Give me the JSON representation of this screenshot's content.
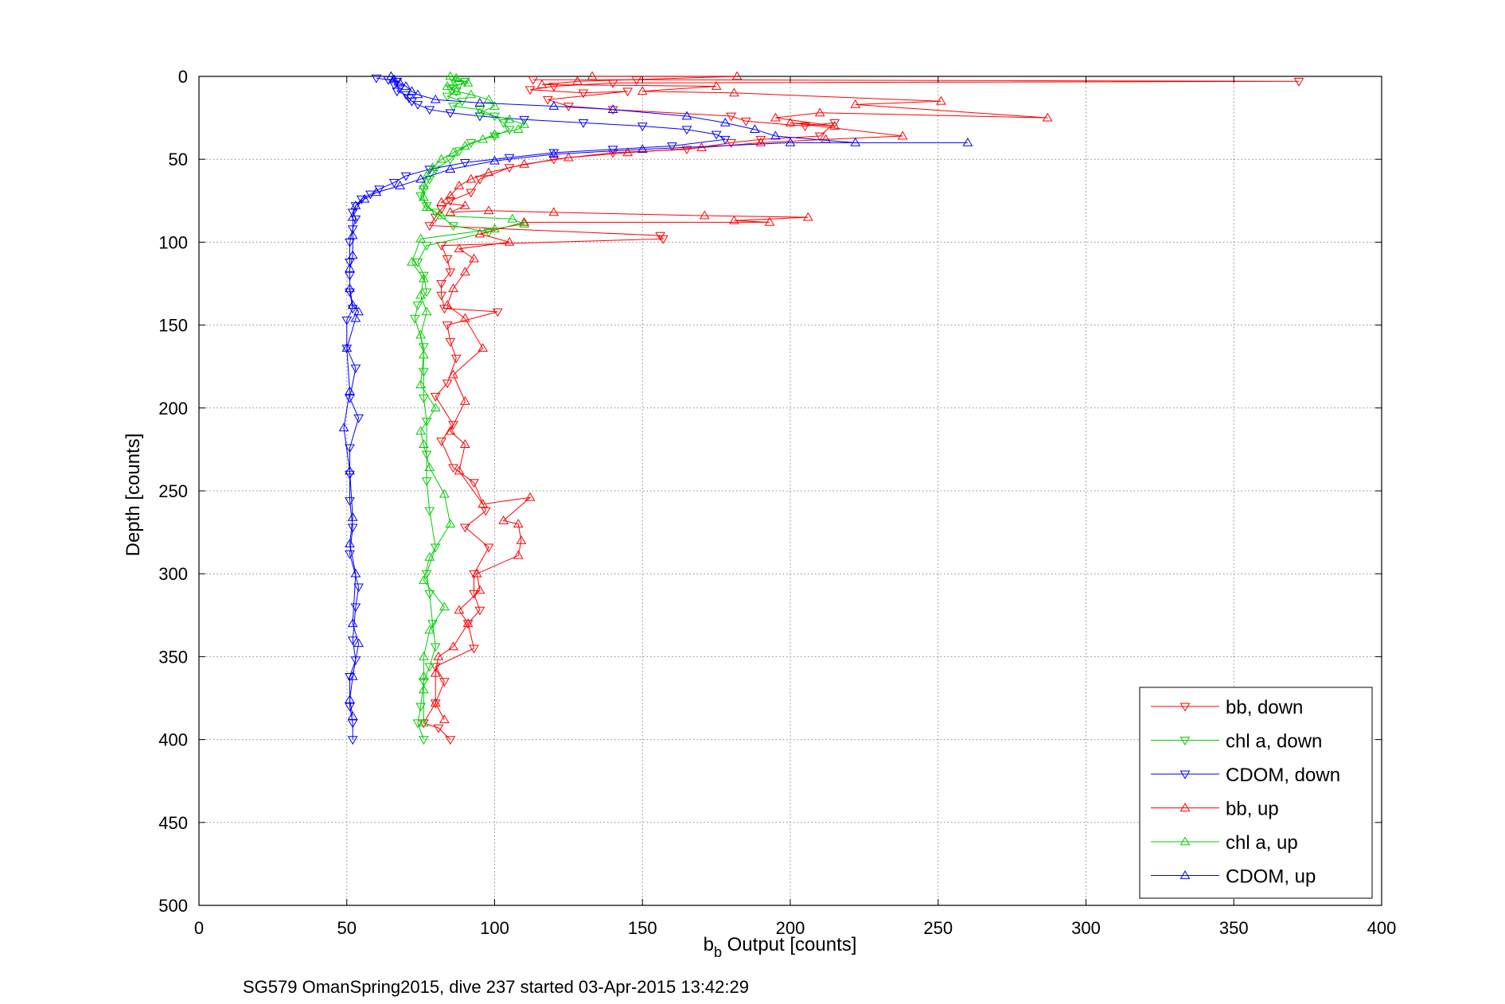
{
  "chart_data": {
    "type": "scatter",
    "xlabel_main": "b",
    "xlabel_sub": "b",
    "xlabel_rest": " Output [counts]",
    "ylabel": "Depth [counts]",
    "caption": "SG579 OmanSpring2015, dive 237 started 03-Apr-2015 13:42:29",
    "xlim": [
      0,
      400
    ],
    "ylim": [
      0,
      500
    ],
    "y_reversed": true,
    "grid": true,
    "xticks": [
      "0",
      "50",
      "100",
      "150",
      "200",
      "250",
      "300",
      "350",
      "400"
    ],
    "yticks": [
      "0",
      "50",
      "100",
      "150",
      "200",
      "250",
      "300",
      "350",
      "400",
      "450",
      "500"
    ],
    "legend_position": "bottom-right",
    "colors": {
      "red": "#ff0000",
      "green": "#00cc00",
      "blue": "#0000ff"
    },
    "series": [
      {
        "name": "bb, down",
        "color": "#ff0000",
        "marker": "triangle-down",
        "points": [
          [
            113,
            2
          ],
          [
            148,
            2
          ],
          [
            372,
            3
          ],
          [
            140,
            4
          ],
          [
            120,
            6
          ],
          [
            112,
            8
          ],
          [
            130,
            10
          ],
          [
            145,
            9
          ],
          [
            118,
            14
          ],
          [
            125,
            18
          ],
          [
            140,
            20
          ],
          [
            180,
            24
          ],
          [
            185,
            27
          ],
          [
            205,
            30
          ],
          [
            215,
            28
          ],
          [
            210,
            36
          ],
          [
            190,
            38
          ],
          [
            180,
            40
          ],
          [
            165,
            44
          ],
          [
            140,
            46
          ],
          [
            120,
            50
          ],
          [
            105,
            55
          ],
          [
            95,
            62
          ],
          [
            92,
            70
          ],
          [
            85,
            75
          ],
          [
            82,
            80
          ],
          [
            80,
            85
          ],
          [
            78,
            90
          ],
          [
            156,
            96
          ],
          [
            157,
            98
          ],
          [
            82,
            102
          ],
          [
            84,
            110
          ],
          [
            85,
            118
          ],
          [
            82,
            125
          ],
          [
            82,
            132
          ],
          [
            83,
            140
          ],
          [
            101,
            142
          ],
          [
            84,
            150
          ],
          [
            85,
            160
          ],
          [
            87,
            170
          ],
          [
            84,
            185
          ],
          [
            80,
            193
          ],
          [
            86,
            210
          ],
          [
            82,
            220
          ],
          [
            86,
            236
          ],
          [
            93,
            245
          ],
          [
            97,
            262
          ],
          [
            90,
            272
          ],
          [
            98,
            284
          ],
          [
            93,
            300
          ],
          [
            93,
            312
          ],
          [
            95,
            322
          ],
          [
            91,
            330
          ],
          [
            93,
            345
          ],
          [
            80,
            356
          ],
          [
            83,
            365
          ],
          [
            80,
            378
          ],
          [
            76,
            390
          ],
          [
            81,
            393
          ],
          [
            85,
            400
          ]
        ]
      },
      {
        "name": "chl a, down",
        "color": "#00cc00",
        "marker": "triangle-down",
        "points": [
          [
            86,
            2
          ],
          [
            90,
            3
          ],
          [
            88,
            5
          ],
          [
            85,
            7
          ],
          [
            87,
            9
          ],
          [
            84,
            12
          ],
          [
            89,
            15
          ],
          [
            86,
            18
          ],
          [
            95,
            20
          ],
          [
            100,
            24
          ],
          [
            103,
            28
          ],
          [
            105,
            32
          ],
          [
            100,
            36
          ],
          [
            92,
            40
          ],
          [
            88,
            45
          ],
          [
            85,
            50
          ],
          [
            80,
            56
          ],
          [
            78,
            62
          ],
          [
            76,
            68
          ],
          [
            75,
            72
          ],
          [
            77,
            78
          ],
          [
            80,
            82
          ],
          [
            86,
            90
          ],
          [
            98,
            94
          ],
          [
            77,
            102
          ],
          [
            74,
            112
          ],
          [
            76,
            120
          ],
          [
            77,
            130
          ],
          [
            74,
            138
          ],
          [
            73,
            146
          ],
          [
            76,
            163
          ],
          [
            76,
            178
          ],
          [
            76,
            194
          ],
          [
            77,
            208
          ],
          [
            77,
            228
          ],
          [
            77,
            244
          ],
          [
            78,
            262
          ],
          [
            80,
            284
          ],
          [
            77,
            300
          ],
          [
            78,
            312
          ],
          [
            79,
            330
          ],
          [
            80,
            344
          ],
          [
            78,
            356
          ],
          [
            76,
            365
          ],
          [
            75,
            380
          ],
          [
            74,
            390
          ],
          [
            76,
            400
          ]
        ]
      },
      {
        "name": "CDOM, down",
        "color": "#0000ff",
        "marker": "triangle-down",
        "points": [
          [
            60,
            1
          ],
          [
            64,
            2
          ],
          [
            67,
            3
          ],
          [
            66,
            5
          ],
          [
            68,
            7
          ],
          [
            67,
            9
          ],
          [
            70,
            11
          ],
          [
            71,
            13
          ],
          [
            72,
            15
          ],
          [
            74,
            17
          ],
          [
            78,
            20
          ],
          [
            85,
            22
          ],
          [
            95,
            24
          ],
          [
            110,
            26
          ],
          [
            130,
            28
          ],
          [
            150,
            30
          ],
          [
            165,
            32
          ],
          [
            175,
            35
          ],
          [
            178,
            38
          ],
          [
            160,
            42
          ],
          [
            140,
            44
          ],
          [
            120,
            46
          ],
          [
            105,
            49
          ],
          [
            90,
            52
          ],
          [
            78,
            56
          ],
          [
            70,
            60
          ],
          [
            66,
            64
          ],
          [
            61,
            68
          ],
          [
            58,
            71
          ],
          [
            55,
            74
          ],
          [
            53,
            78
          ],
          [
            52,
            82
          ],
          [
            53,
            86
          ],
          [
            52,
            92
          ],
          [
            51,
            100
          ],
          [
            51,
            112
          ],
          [
            51,
            120
          ],
          [
            51,
            130
          ],
          [
            52,
            140
          ],
          [
            50,
            147
          ],
          [
            50,
            164
          ],
          [
            53,
            176
          ],
          [
            51,
            194
          ],
          [
            54,
            206
          ],
          [
            51,
            224
          ],
          [
            51,
            240
          ],
          [
            51,
            256
          ],
          [
            52,
            272
          ],
          [
            51,
            288
          ],
          [
            54,
            308
          ],
          [
            53,
            320
          ],
          [
            52,
            340
          ],
          [
            53,
            352
          ],
          [
            51,
            362
          ],
          [
            51,
            380
          ],
          [
            52,
            390
          ],
          [
            52,
            400
          ]
        ]
      },
      {
        "name": "bb, up",
        "color": "#ff0000",
        "marker": "triangle-up",
        "points": [
          [
            133,
            0
          ],
          [
            182,
            0
          ],
          [
            128,
            3
          ],
          [
            116,
            5
          ],
          [
            175,
            6
          ],
          [
            150,
            9
          ],
          [
            181,
            10
          ],
          [
            251,
            15
          ],
          [
            222,
            17
          ],
          [
            287,
            25
          ],
          [
            210,
            22
          ],
          [
            195,
            25
          ],
          [
            215,
            30
          ],
          [
            200,
            28
          ],
          [
            238,
            36
          ],
          [
            212,
            38
          ],
          [
            190,
            40
          ],
          [
            170,
            43
          ],
          [
            145,
            46
          ],
          [
            125,
            49
          ],
          [
            110,
            53
          ],
          [
            98,
            58
          ],
          [
            92,
            62
          ],
          [
            88,
            66
          ],
          [
            85,
            72
          ],
          [
            82,
            76
          ],
          [
            90,
            78
          ],
          [
            85,
            82
          ],
          [
            98,
            81
          ],
          [
            120,
            82
          ],
          [
            171,
            84
          ],
          [
            206,
            85
          ],
          [
            181,
            87
          ],
          [
            193,
            88
          ],
          [
            110,
            88
          ],
          [
            95,
            95
          ],
          [
            105,
            100
          ],
          [
            88,
            104
          ],
          [
            93,
            110
          ],
          [
            90,
            118
          ],
          [
            86,
            128
          ],
          [
            84,
            138
          ],
          [
            90,
            146
          ],
          [
            96,
            164
          ],
          [
            86,
            180
          ],
          [
            90,
            196
          ],
          [
            85,
            214
          ],
          [
            90,
            222
          ],
          [
            88,
            238
          ],
          [
            96,
            258
          ],
          [
            112,
            254
          ],
          [
            103,
            268
          ],
          [
            108,
            270
          ],
          [
            109,
            280
          ],
          [
            108,
            289
          ],
          [
            94,
            300
          ],
          [
            95,
            310
          ],
          [
            88,
            322
          ],
          [
            91,
            330
          ],
          [
            86,
            344
          ],
          [
            81,
            350
          ],
          [
            80,
            360
          ],
          [
            80,
            378
          ],
          [
            83,
            388
          ]
        ]
      },
      {
        "name": "chl a, up",
        "color": "#00cc00",
        "marker": "triangle-up",
        "points": [
          [
            85,
            0
          ],
          [
            87,
            1
          ],
          [
            91,
            4
          ],
          [
            84,
            6
          ],
          [
            87,
            9
          ],
          [
            92,
            11
          ],
          [
            98,
            14
          ],
          [
            100,
            18
          ],
          [
            95,
            22
          ],
          [
            105,
            26
          ],
          [
            110,
            29
          ],
          [
            108,
            32
          ],
          [
            100,
            35
          ],
          [
            96,
            38
          ],
          [
            90,
            42
          ],
          [
            86,
            46
          ],
          [
            82,
            50
          ],
          [
            79,
            55
          ],
          [
            77,
            60
          ],
          [
            76,
            66
          ],
          [
            76,
            73
          ],
          [
            77,
            79
          ],
          [
            82,
            84
          ],
          [
            106,
            86
          ],
          [
            110,
            89
          ],
          [
            100,
            92
          ],
          [
            75,
            98
          ],
          [
            72,
            112
          ],
          [
            76,
            122
          ],
          [
            75,
            132
          ],
          [
            77,
            142
          ],
          [
            75,
            156
          ],
          [
            76,
            168
          ],
          [
            75,
            186
          ],
          [
            80,
            200
          ],
          [
            75,
            214
          ],
          [
            76,
            222
          ],
          [
            78,
            236
          ],
          [
            83,
            252
          ],
          [
            85,
            270
          ],
          [
            78,
            290
          ],
          [
            76,
            304
          ],
          [
            83,
            320
          ],
          [
            78,
            334
          ],
          [
            76,
            350
          ],
          [
            76,
            362
          ],
          [
            76,
            370
          ],
          [
            76,
            390
          ]
        ]
      },
      {
        "name": "CDOM, up",
        "color": "#0000ff",
        "marker": "triangle-up",
        "points": [
          [
            65,
            0
          ],
          [
            66,
            2
          ],
          [
            68,
            4
          ],
          [
            70,
            6
          ],
          [
            72,
            9
          ],
          [
            74,
            11
          ],
          [
            80,
            14
          ],
          [
            95,
            16
          ],
          [
            120,
            18
          ],
          [
            140,
            20
          ],
          [
            165,
            24
          ],
          [
            178,
            28
          ],
          [
            188,
            32
          ],
          [
            195,
            36
          ],
          [
            222,
            40
          ],
          [
            260,
            40
          ],
          [
            200,
            40
          ],
          [
            150,
            44
          ],
          [
            120,
            47
          ],
          [
            100,
            51
          ],
          [
            85,
            56
          ],
          [
            75,
            62
          ],
          [
            68,
            66
          ],
          [
            60,
            70
          ],
          [
            56,
            74
          ],
          [
            53,
            78
          ],
          [
            52,
            85
          ],
          [
            52,
            96
          ],
          [
            52,
            108
          ],
          [
            51,
            116
          ],
          [
            51,
            128
          ],
          [
            52,
            138
          ],
          [
            54,
            142
          ],
          [
            53,
            146
          ],
          [
            50,
            164
          ],
          [
            51,
            190
          ],
          [
            49,
            212
          ],
          [
            51,
            238
          ],
          [
            52,
            266
          ],
          [
            51,
            282
          ],
          [
            53,
            300
          ],
          [
            52,
            330
          ],
          [
            54,
            342
          ],
          [
            52,
            362
          ],
          [
            51,
            376
          ],
          [
            52,
            386
          ]
        ]
      }
    ]
  }
}
